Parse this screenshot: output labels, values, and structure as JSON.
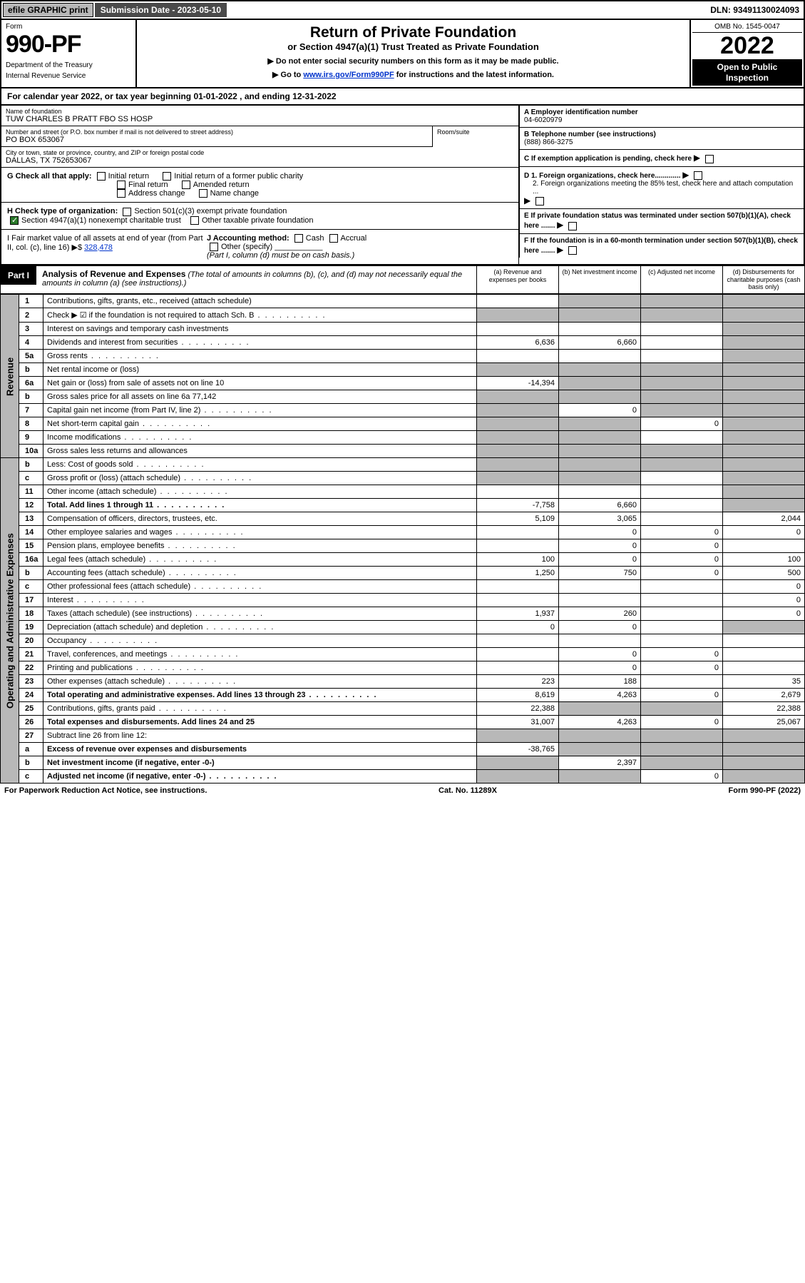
{
  "top": {
    "efile": "efile GRAPHIC print",
    "submission": "Submission Date - 2023-05-10",
    "dln": "DLN: 93491130024093"
  },
  "header": {
    "form_label": "Form",
    "form_number": "990-PF",
    "dept1": "Department of the Treasury",
    "dept2": "Internal Revenue Service",
    "title": "Return of Private Foundation",
    "subtitle": "or Section 4947(a)(1) Trust Treated as Private Foundation",
    "note1": "▶ Do not enter social security numbers on this form as it may be made public.",
    "note2_pre": "▶ Go to ",
    "note2_link": "www.irs.gov/Form990PF",
    "note2_post": " for instructions and the latest information.",
    "omb": "OMB No. 1545-0047",
    "year": "2022",
    "inspection1": "Open to Public",
    "inspection2": "Inspection"
  },
  "cal_year": "For calendar year 2022, or tax year beginning 01-01-2022                         , and ending 12-31-2022",
  "info": {
    "name_lbl": "Name of foundation",
    "name_val": "TUW CHARLES B PRATT FBO SS HOSP",
    "addr_lbl": "Number and street (or P.O. box number if mail is not delivered to street address)",
    "addr_val": "PO BOX 653067",
    "room_lbl": "Room/suite",
    "city_lbl": "City or town, state or province, country, and ZIP or foreign postal code",
    "city_val": "DALLAS, TX  752653067",
    "a_lbl": "A Employer identification number",
    "a_val": "04-6020979",
    "b_lbl": "B Telephone number (see instructions)",
    "b_val": "(888) 866-3275",
    "c_lbl": "C If exemption application is pending, check here",
    "d1_lbl": "D 1. Foreign organizations, check here.............",
    "d2_lbl": "2. Foreign organizations meeting the 85% test, check here and attach computation ...",
    "e_lbl": "E  If private foundation status was terminated under section 507(b)(1)(A), check here .......",
    "f_lbl": "F  If the foundation is in a 60-month termination under section 507(b)(1)(B), check here .......",
    "g_lbl": "G Check all that apply:",
    "g_opts": {
      "initial": "Initial return",
      "initial_former": "Initial return of a former public charity",
      "final": "Final return",
      "amended": "Amended return",
      "address": "Address change",
      "name": "Name change"
    },
    "h_lbl": "H Check type of organization:",
    "h_501": "Section 501(c)(3) exempt private foundation",
    "h_4947": "Section 4947(a)(1) nonexempt charitable trust",
    "h_other": "Other taxable private foundation",
    "i_lbl": "I Fair market value of all assets at end of year (from Part II, col. (c), line 16)",
    "i_val": "328,478",
    "j_lbl": "J Accounting method:",
    "j_cash": "Cash",
    "j_accrual": "Accrual",
    "j_other": "Other (specify)",
    "j_note": "(Part I, column (d) must be on cash basis.)"
  },
  "part1": {
    "label": "Part I",
    "title": "Analysis of Revenue and Expenses",
    "title_note": "(The total of amounts in columns (b), (c), and (d) may not necessarily equal the amounts in column (a) (see instructions).)",
    "col_a": "(a)   Revenue and expenses per books",
    "col_b": "(b)   Net investment income",
    "col_c": "(c)   Adjusted net income",
    "col_d": "(d)   Disbursements for charitable purposes (cash basis only)"
  },
  "sides": {
    "revenue": "Revenue",
    "expenses": "Operating and Administrative Expenses"
  },
  "rows": [
    {
      "n": "1",
      "d": "Contributions, gifts, grants, etc., received (attach schedule)",
      "a": "",
      "b": "grey",
      "c": "grey",
      "ddis": "grey"
    },
    {
      "n": "2",
      "d": "Check ▶ ☑ if the foundation is not required to attach Sch. B",
      "a": "grey",
      "b": "grey",
      "c": "grey",
      "ddis": "grey",
      "dots": true
    },
    {
      "n": "3",
      "d": "Interest on savings and temporary cash investments",
      "a": "",
      "b": "",
      "c": "",
      "ddis": "grey"
    },
    {
      "n": "4",
      "d": "Dividends and interest from securities",
      "a": "6,636",
      "b": "6,660",
      "c": "",
      "ddis": "grey",
      "dots": true
    },
    {
      "n": "5a",
      "d": "Gross rents",
      "a": "",
      "b": "",
      "c": "",
      "ddis": "grey",
      "dots": true
    },
    {
      "n": "b",
      "d": "Net rental income or (loss)",
      "a": "grey",
      "b": "grey",
      "c": "grey",
      "ddis": "grey"
    },
    {
      "n": "6a",
      "d": "Net gain or (loss) from sale of assets not on line 10",
      "a": "-14,394",
      "b": "grey",
      "c": "grey",
      "ddis": "grey"
    },
    {
      "n": "b",
      "d": "Gross sales price for all assets on line 6a                77,142",
      "a": "grey",
      "b": "grey",
      "c": "grey",
      "ddis": "grey"
    },
    {
      "n": "7",
      "d": "Capital gain net income (from Part IV, line 2)",
      "a": "grey",
      "b": "0",
      "c": "grey",
      "ddis": "grey",
      "dots": true
    },
    {
      "n": "8",
      "d": "Net short-term capital gain",
      "a": "grey",
      "b": "grey",
      "c": "0",
      "ddis": "grey",
      "dots": true
    },
    {
      "n": "9",
      "d": "Income modifications",
      "a": "grey",
      "b": "grey",
      "c": "",
      "ddis": "grey",
      "dots": true
    },
    {
      "n": "10a",
      "d": "Gross sales less returns and allowances",
      "a": "grey",
      "b": "grey",
      "c": "grey",
      "ddis": "grey"
    },
    {
      "n": "b",
      "d": "Less: Cost of goods sold",
      "a": "grey",
      "b": "grey",
      "c": "grey",
      "ddis": "grey",
      "dots": true
    },
    {
      "n": "c",
      "d": "Gross profit or (loss) (attach schedule)",
      "a": "grey",
      "b": "grey",
      "c": "",
      "ddis": "grey",
      "dots": true
    },
    {
      "n": "11",
      "d": "Other income (attach schedule)",
      "a": "",
      "b": "",
      "c": "",
      "ddis": "grey",
      "dots": true
    },
    {
      "n": "12",
      "d": "Total. Add lines 1 through 11",
      "a": "-7,758",
      "b": "6,660",
      "c": "",
      "ddis": "grey",
      "dots": true,
      "bold": true
    },
    {
      "n": "13",
      "d": "Compensation of officers, directors, trustees, etc.",
      "a": "5,109",
      "b": "3,065",
      "c": "",
      "ddis": "2,044"
    },
    {
      "n": "14",
      "d": "Other employee salaries and wages",
      "a": "",
      "b": "0",
      "c": "0",
      "ddis": "0",
      "dots": true
    },
    {
      "n": "15",
      "d": "Pension plans, employee benefits",
      "a": "",
      "b": "0",
      "c": "0",
      "ddis": "",
      "dots": true
    },
    {
      "n": "16a",
      "d": "Legal fees (attach schedule)",
      "a": "100",
      "b": "0",
      "c": "0",
      "ddis": "100",
      "dots": true
    },
    {
      "n": "b",
      "d": "Accounting fees (attach schedule)",
      "a": "1,250",
      "b": "750",
      "c": "0",
      "ddis": "500",
      "dots": true
    },
    {
      "n": "c",
      "d": "Other professional fees (attach schedule)",
      "a": "",
      "b": "",
      "c": "",
      "ddis": "0",
      "dots": true
    },
    {
      "n": "17",
      "d": "Interest",
      "a": "",
      "b": "",
      "c": "",
      "ddis": "0",
      "dots": true
    },
    {
      "n": "18",
      "d": "Taxes (attach schedule) (see instructions)",
      "a": "1,937",
      "b": "260",
      "c": "",
      "ddis": "0",
      "dots": true
    },
    {
      "n": "19",
      "d": "Depreciation (attach schedule) and depletion",
      "a": "0",
      "b": "0",
      "c": "",
      "ddis": "grey",
      "dots": true
    },
    {
      "n": "20",
      "d": "Occupancy",
      "a": "",
      "b": "",
      "c": "",
      "ddis": "",
      "dots": true
    },
    {
      "n": "21",
      "d": "Travel, conferences, and meetings",
      "a": "",
      "b": "0",
      "c": "0",
      "ddis": "",
      "dots": true
    },
    {
      "n": "22",
      "d": "Printing and publications",
      "a": "",
      "b": "0",
      "c": "0",
      "ddis": "",
      "dots": true
    },
    {
      "n": "23",
      "d": "Other expenses (attach schedule)",
      "a": "223",
      "b": "188",
      "c": "",
      "ddis": "35",
      "dots": true
    },
    {
      "n": "24",
      "d": "Total operating and administrative expenses. Add lines 13 through 23",
      "a": "8,619",
      "b": "4,263",
      "c": "0",
      "ddis": "2,679",
      "dots": true,
      "bold": true
    },
    {
      "n": "25",
      "d": "Contributions, gifts, grants paid",
      "a": "22,388",
      "b": "grey",
      "c": "grey",
      "ddis": "22,388",
      "dots": true
    },
    {
      "n": "26",
      "d": "Total expenses and disbursements. Add lines 24 and 25",
      "a": "31,007",
      "b": "4,263",
      "c": "0",
      "ddis": "25,067",
      "bold": true
    },
    {
      "n": "27",
      "d": "Subtract line 26 from line 12:",
      "a": "grey",
      "b": "grey",
      "c": "grey",
      "ddis": "grey"
    },
    {
      "n": "a",
      "d": "Excess of revenue over expenses and disbursements",
      "a": "-38,765",
      "b": "grey",
      "c": "grey",
      "ddis": "grey",
      "bold": true
    },
    {
      "n": "b",
      "d": "Net investment income (if negative, enter -0-)",
      "a": "grey",
      "b": "2,397",
      "c": "grey",
      "ddis": "grey",
      "bold": true
    },
    {
      "n": "c",
      "d": "Adjusted net income (if negative, enter -0-)",
      "a": "grey",
      "b": "grey",
      "c": "0",
      "ddis": "grey",
      "bold": true,
      "dots": true
    }
  ],
  "footer": {
    "left": "For Paperwork Reduction Act Notice, see instructions.",
    "mid": "Cat. No. 11289X",
    "right": "Form 990-PF (2022)"
  }
}
